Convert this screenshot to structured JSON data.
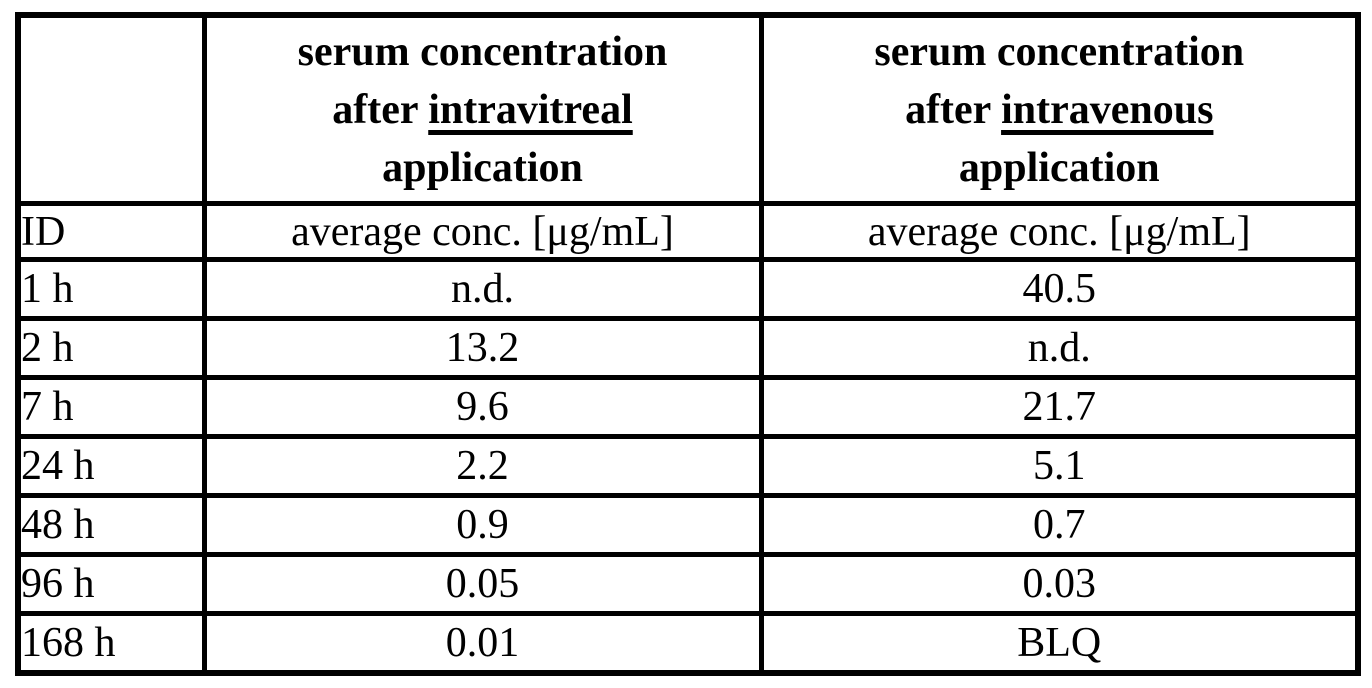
{
  "table": {
    "header": {
      "corner": "",
      "intravitreal": {
        "line1": "serum concentration",
        "line2_prefix": "after",
        "line2_underlined": "intravitreal",
        "line3": "application"
      },
      "intravenous": {
        "line1": "serum concentration",
        "line2_prefix": "after",
        "line2_underlined": "intravenous",
        "line3": "application"
      }
    },
    "subheader": {
      "id": "ID",
      "intravitreal_unit": "average conc. [μg/mL]",
      "intravenous_unit": "average conc. [μg/mL]"
    },
    "rows": [
      {
        "id": "1 h",
        "intravitreal": "n.d.",
        "intravenous": "40.5"
      },
      {
        "id": "2 h",
        "intravitreal": "13.2",
        "intravenous": "n.d."
      },
      {
        "id": "7 h",
        "intravitreal": "9.6",
        "intravenous": "21.7"
      },
      {
        "id": "24 h",
        "intravitreal": "2.2",
        "intravenous": "5.1"
      },
      {
        "id": "48 h",
        "intravitreal": "0.9",
        "intravenous": "0.7"
      },
      {
        "id": "96 h",
        "intravitreal": "0.05",
        "intravenous": "0.03"
      },
      {
        "id": "168 h",
        "intravitreal": "0.01",
        "intravenous": "BLQ"
      }
    ]
  },
  "chart_data": {
    "type": "table",
    "columns": [
      "ID",
      "serum concentration after intravitreal application — average conc. [μg/mL]",
      "serum concentration after intravenous application — average conc. [μg/mL]"
    ],
    "rows": [
      [
        "1 h",
        "n.d.",
        "40.5"
      ],
      [
        "2 h",
        "13.2",
        "n.d."
      ],
      [
        "7 h",
        "9.6",
        "21.7"
      ],
      [
        "24 h",
        "2.2",
        "5.1"
      ],
      [
        "48 h",
        "0.9",
        "0.7"
      ],
      [
        "96 h",
        "0.05",
        "0.03"
      ],
      [
        "168 h",
        "0.01",
        "BLQ"
      ]
    ]
  }
}
